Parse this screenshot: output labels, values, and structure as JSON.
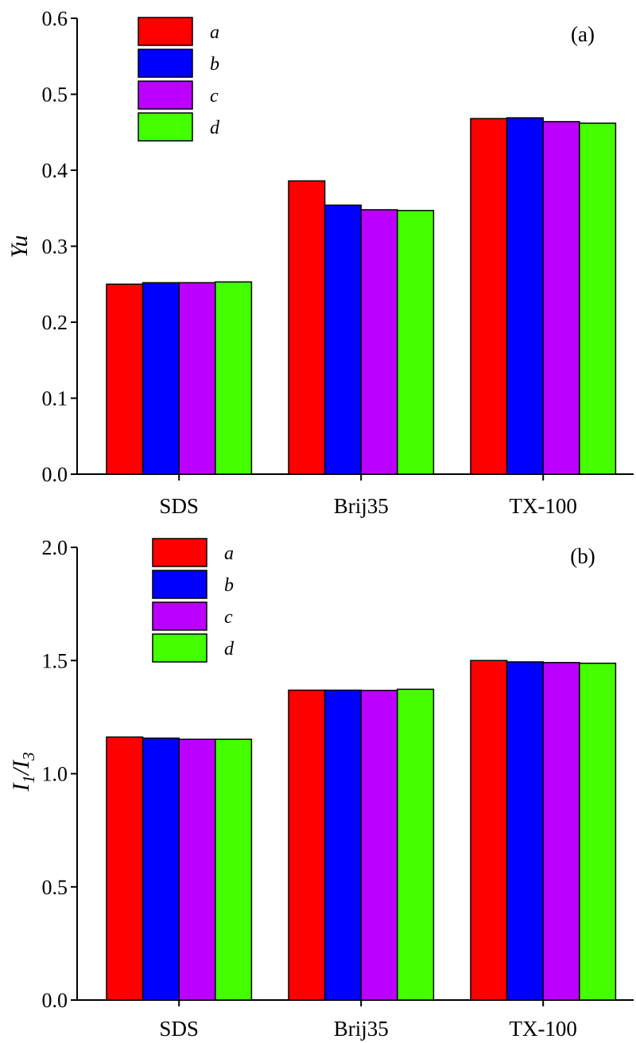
{
  "chart_data": [
    {
      "type": "bar",
      "panel_label": "(a)",
      "ylabel": "Yu",
      "ylim": [
        0,
        0.6
      ],
      "yticks": [
        "0.0",
        "0.1",
        "0.2",
        "0.3",
        "0.4",
        "0.5",
        "0.6"
      ],
      "ytick_values": [
        0,
        0.1,
        0.2,
        0.3,
        0.4,
        0.5,
        0.6
      ],
      "categories": [
        "SDS",
        "Brij35",
        "TX-100"
      ],
      "legend_placement": "top-left",
      "series": [
        {
          "name": "a",
          "color": "#ff0000",
          "values": [
            0.25,
            0.386,
            0.468
          ]
        },
        {
          "name": "b",
          "color": "#0000ff",
          "values": [
            0.252,
            0.354,
            0.469
          ]
        },
        {
          "name": "c",
          "color": "#bb00ff",
          "values": [
            0.252,
            0.348,
            0.464
          ]
        },
        {
          "name": "d",
          "color": "#44ff00",
          "values": [
            0.253,
            0.347,
            0.462
          ]
        }
      ]
    },
    {
      "type": "bar",
      "panel_label": "(b)",
      "ylabel_main": "I",
      "ylabel_sub1": "1",
      "ylabel_sep": "/I",
      "ylabel_sub2": "3",
      "ylim": [
        0,
        2.0
      ],
      "yticks": [
        "0.0",
        "0.5",
        "1.0",
        "1.5",
        "2.0"
      ],
      "ytick_values": [
        0,
        0.5,
        1.0,
        1.5,
        2.0
      ],
      "categories": [
        "SDS",
        "Brij35",
        "TX-100"
      ],
      "legend_placement": "top-left",
      "series": [
        {
          "name": "a",
          "color": "#ff0000",
          "values": [
            1.162,
            1.369,
            1.5
          ]
        },
        {
          "name": "b",
          "color": "#0000ff",
          "values": [
            1.157,
            1.369,
            1.494
          ]
        },
        {
          "name": "c",
          "color": "#bb00ff",
          "values": [
            1.152,
            1.368,
            1.491
          ]
        },
        {
          "name": "d",
          "color": "#44ff00",
          "values": [
            1.152,
            1.373,
            1.488
          ]
        }
      ]
    }
  ]
}
